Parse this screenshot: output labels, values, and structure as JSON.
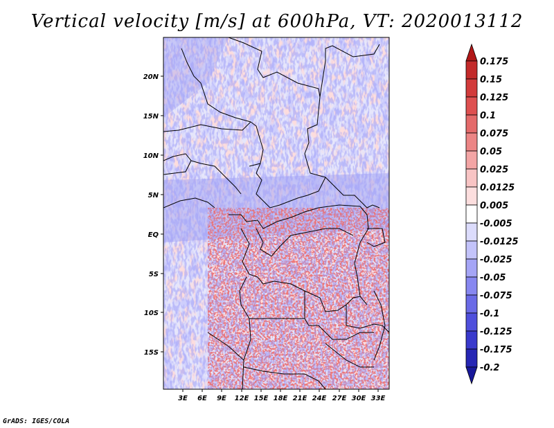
{
  "title": "Vertical velocity [m/s] at 600hPa, VT: 2020013112",
  "credit": "GrADS: IGES/COLA",
  "map": {
    "lat_labels": [
      "20N",
      "15N",
      "10N",
      "5N",
      "EQ",
      "5S",
      "10S",
      "15S"
    ],
    "lon_labels": [
      "3E",
      "6E",
      "9E",
      "12E",
      "15E",
      "18E",
      "21E",
      "24E",
      "27E",
      "30E",
      "33E"
    ]
  },
  "colorbar": {
    "labels": [
      "0.175",
      "0.15",
      "0.125",
      "0.1",
      "0.075",
      "0.05",
      "0.025",
      "0.0125",
      "0.005",
      "-0.005",
      "-0.0125",
      "-0.025",
      "-0.05",
      "-0.075",
      "-0.1",
      "-0.125",
      "-0.175",
      "-0.2"
    ],
    "colors": [
      "#b11717",
      "#c32a2a",
      "#d23b3b",
      "#de5050",
      "#e46a6a",
      "#ec8585",
      "#f3a5a5",
      "#f8c4c4",
      "#fcdede",
      "#ffffff",
      "#dcdcfc",
      "#c3c3fa",
      "#a5a5f6",
      "#8787f0",
      "#6a6ae6",
      "#4f4fdc",
      "#3939cc",
      "#2626b4",
      "#18189a"
    ]
  }
}
